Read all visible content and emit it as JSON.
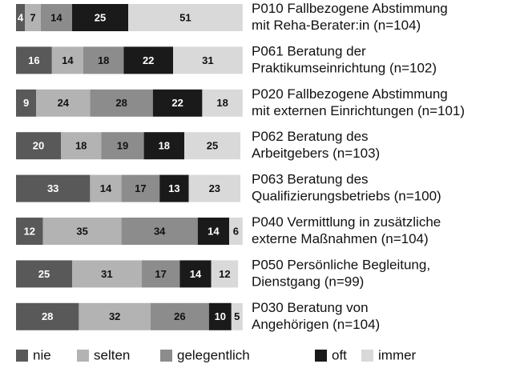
{
  "chart_data": {
    "type": "stacked-barh",
    "categories": [
      "P010 Fallbezogene Abstimmung\nmit Reha-Berater:in (n=104)",
      "P061 Beratung der\nPraktikumseinrichtung (n=102)",
      "P020 Fallbezogene Abstimmung\nmit externen Einrichtungen (n=101)",
      "P062 Beratung des\nArbeitgebers (n=103)",
      "P063 Beratung des\nQualifizierungsbetriebs (n=100)",
      "P040 Vermittlung in zusätzliche\nexterne Maßnahmen (n=104)",
      "P050 Persönliche Begleitung,\nDienstgang (n=99)",
      "P030 Beratung von\nAngehörigen (n=104)"
    ],
    "series": [
      {
        "name": "nie",
        "color": "#595959",
        "values": [
          4,
          16,
          9,
          20,
          33,
          12,
          25,
          28
        ]
      },
      {
        "name": "selten",
        "color": "#b3b3b3",
        "values": [
          7,
          14,
          24,
          18,
          14,
          35,
          31,
          32
        ]
      },
      {
        "name": "gelegentlich",
        "color": "#8c8c8c",
        "values": [
          14,
          18,
          28,
          19,
          17,
          34,
          17,
          26
        ]
      },
      {
        "name": "oft",
        "color": "#1a1a1a",
        "values": [
          25,
          22,
          22,
          18,
          13,
          14,
          14,
          10
        ]
      },
      {
        "name": "immer",
        "color": "#d9d9d9",
        "values": [
          51,
          31,
          18,
          25,
          23,
          6,
          12,
          5
        ]
      }
    ],
    "xlim": [
      0,
      100
    ]
  }
}
